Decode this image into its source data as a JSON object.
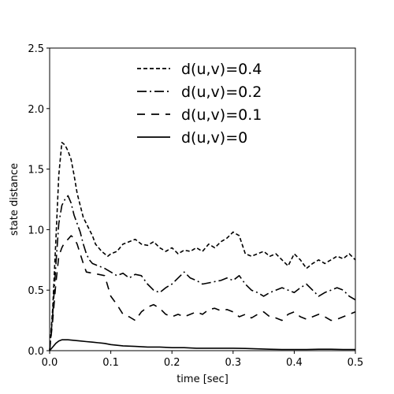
{
  "chart_data": {
    "type": "line",
    "title": "",
    "xlabel": "time [sec]",
    "ylabel": "state distance",
    "xlim": [
      0.0,
      0.5
    ],
    "ylim": [
      0.0,
      2.5
    ],
    "xticks": [
      "0.0",
      "0.1",
      "0.2",
      "0.3",
      "0.4",
      "0.5"
    ],
    "yticks": [
      "0.0",
      "0.5",
      "1.0",
      "1.5",
      "2.0",
      "2.5"
    ],
    "grid": false,
    "legend_position": "top-center",
    "series": [
      {
        "name": "d(u,v)=0.4",
        "dash": "short-dash",
        "x": [
          0.0,
          0.005,
          0.01,
          0.015,
          0.02,
          0.025,
          0.03,
          0.035,
          0.04,
          0.045,
          0.05,
          0.055,
          0.06,
          0.065,
          0.07,
          0.075,
          0.08,
          0.085,
          0.09,
          0.095,
          0.1,
          0.11,
          0.12,
          0.13,
          0.14,
          0.15,
          0.16,
          0.17,
          0.18,
          0.19,
          0.2,
          0.21,
          0.22,
          0.23,
          0.24,
          0.25,
          0.26,
          0.27,
          0.28,
          0.29,
          0.3,
          0.31,
          0.32,
          0.33,
          0.34,
          0.35,
          0.36,
          0.37,
          0.38,
          0.39,
          0.4,
          0.41,
          0.42,
          0.43,
          0.44,
          0.45,
          0.46,
          0.47,
          0.48,
          0.49,
          0.5
        ],
        "values": [
          0.0,
          0.35,
          0.9,
          1.45,
          1.72,
          1.7,
          1.65,
          1.58,
          1.45,
          1.3,
          1.2,
          1.1,
          1.05,
          1.0,
          0.95,
          0.88,
          0.85,
          0.82,
          0.8,
          0.78,
          0.8,
          0.82,
          0.88,
          0.9,
          0.92,
          0.88,
          0.87,
          0.9,
          0.85,
          0.82,
          0.85,
          0.8,
          0.83,
          0.82,
          0.85,
          0.82,
          0.88,
          0.85,
          0.9,
          0.93,
          0.98,
          0.95,
          0.8,
          0.78,
          0.8,
          0.82,
          0.78,
          0.8,
          0.75,
          0.7,
          0.8,
          0.75,
          0.68,
          0.72,
          0.75,
          0.72,
          0.75,
          0.78,
          0.76,
          0.8,
          0.75
        ]
      },
      {
        "name": "d(u,v)=0.2",
        "dash": "dash-dot",
        "x": [
          0.0,
          0.005,
          0.01,
          0.015,
          0.02,
          0.025,
          0.03,
          0.035,
          0.04,
          0.045,
          0.05,
          0.055,
          0.06,
          0.065,
          0.07,
          0.08,
          0.09,
          0.1,
          0.11,
          0.12,
          0.13,
          0.14,
          0.15,
          0.16,
          0.17,
          0.18,
          0.19,
          0.2,
          0.21,
          0.22,
          0.23,
          0.24,
          0.25,
          0.26,
          0.27,
          0.28,
          0.29,
          0.3,
          0.31,
          0.32,
          0.33,
          0.34,
          0.35,
          0.36,
          0.37,
          0.38,
          0.39,
          0.4,
          0.41,
          0.42,
          0.43,
          0.44,
          0.45,
          0.46,
          0.47,
          0.48,
          0.49,
          0.5
        ],
        "values": [
          0.0,
          0.3,
          0.7,
          1.05,
          1.2,
          1.25,
          1.28,
          1.22,
          1.12,
          1.05,
          0.98,
          0.88,
          0.8,
          0.75,
          0.72,
          0.7,
          0.68,
          0.65,
          0.62,
          0.64,
          0.6,
          0.63,
          0.62,
          0.55,
          0.5,
          0.48,
          0.52,
          0.55,
          0.6,
          0.65,
          0.6,
          0.58,
          0.55,
          0.56,
          0.57,
          0.58,
          0.6,
          0.58,
          0.62,
          0.55,
          0.5,
          0.48,
          0.45,
          0.48,
          0.5,
          0.52,
          0.5,
          0.48,
          0.52,
          0.55,
          0.5,
          0.45,
          0.48,
          0.5,
          0.52,
          0.5,
          0.45,
          0.42
        ]
      },
      {
        "name": "d(u,v)=0.1",
        "dash": "long-dash",
        "x": [
          0.0,
          0.005,
          0.01,
          0.015,
          0.02,
          0.025,
          0.03,
          0.035,
          0.04,
          0.045,
          0.05,
          0.055,
          0.06,
          0.07,
          0.08,
          0.09,
          0.1,
          0.11,
          0.12,
          0.13,
          0.14,
          0.15,
          0.16,
          0.17,
          0.18,
          0.19,
          0.2,
          0.21,
          0.22,
          0.23,
          0.24,
          0.25,
          0.26,
          0.27,
          0.28,
          0.29,
          0.3,
          0.31,
          0.32,
          0.33,
          0.34,
          0.35,
          0.36,
          0.37,
          0.38,
          0.39,
          0.4,
          0.41,
          0.42,
          0.43,
          0.44,
          0.45,
          0.46,
          0.47,
          0.48,
          0.49,
          0.5
        ],
        "values": [
          0.0,
          0.25,
          0.55,
          0.78,
          0.85,
          0.9,
          0.92,
          0.95,
          0.93,
          0.88,
          0.8,
          0.72,
          0.65,
          0.64,
          0.63,
          0.62,
          0.45,
          0.38,
          0.3,
          0.28,
          0.25,
          0.32,
          0.36,
          0.38,
          0.35,
          0.3,
          0.28,
          0.3,
          0.28,
          0.3,
          0.32,
          0.3,
          0.34,
          0.35,
          0.33,
          0.34,
          0.32,
          0.28,
          0.3,
          0.27,
          0.3,
          0.32,
          0.28,
          0.27,
          0.25,
          0.3,
          0.32,
          0.28,
          0.26,
          0.28,
          0.3,
          0.28,
          0.25,
          0.26,
          0.28,
          0.3,
          0.32
        ]
      },
      {
        "name": "d(u,v)=0",
        "dash": "solid",
        "x": [
          0.0,
          0.005,
          0.01,
          0.015,
          0.02,
          0.025,
          0.03,
          0.04,
          0.05,
          0.06,
          0.07,
          0.08,
          0.09,
          0.1,
          0.12,
          0.14,
          0.16,
          0.18,
          0.2,
          0.22,
          0.24,
          0.26,
          0.28,
          0.3,
          0.32,
          0.34,
          0.36,
          0.38,
          0.4,
          0.42,
          0.44,
          0.46,
          0.48,
          0.5
        ],
        "values": [
          0.0,
          0.03,
          0.06,
          0.08,
          0.09,
          0.09,
          0.09,
          0.085,
          0.08,
          0.075,
          0.07,
          0.065,
          0.06,
          0.05,
          0.04,
          0.035,
          0.03,
          0.03,
          0.025,
          0.025,
          0.02,
          0.02,
          0.02,
          0.02,
          0.018,
          0.015,
          0.012,
          0.01,
          0.01,
          0.01,
          0.012,
          0.012,
          0.01,
          0.01
        ]
      }
    ]
  }
}
